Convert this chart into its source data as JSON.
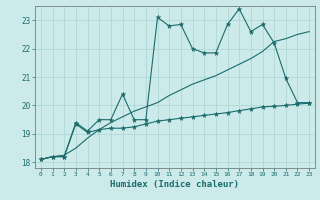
{
  "xlabel": "Humidex (Indice chaleur)",
  "bg_color": "#cceaea",
  "grid_color": "#aad4d4",
  "line_color": "#1a6b6b",
  "xlim": [
    -0.5,
    23.5
  ],
  "ylim": [
    17.8,
    23.5
  ],
  "yticks": [
    18,
    19,
    20,
    21,
    22,
    23
  ],
  "xticks": [
    0,
    1,
    2,
    3,
    4,
    5,
    6,
    7,
    8,
    9,
    10,
    11,
    12,
    13,
    14,
    15,
    16,
    17,
    18,
    19,
    20,
    21,
    22,
    23
  ],
  "line1_x": [
    0,
    1,
    2,
    3,
    4,
    5,
    6,
    7,
    8,
    9,
    10,
    11,
    12,
    13,
    14,
    15,
    16,
    17,
    18,
    19,
    20,
    21,
    22,
    23
  ],
  "line1_y": [
    18.1,
    18.2,
    18.2,
    19.4,
    19.1,
    19.5,
    19.5,
    20.4,
    19.5,
    19.5,
    23.1,
    22.8,
    22.85,
    22.0,
    21.85,
    21.85,
    22.85,
    23.4,
    22.6,
    22.85,
    22.2,
    20.95,
    20.1,
    20.1
  ],
  "line2_x": [
    0,
    1,
    2,
    3,
    4,
    5,
    6,
    7,
    8,
    9,
    10,
    11,
    12,
    13,
    14,
    15,
    16,
    17,
    18,
    19,
    20,
    21,
    22,
    23
  ],
  "line2_y": [
    18.1,
    18.2,
    18.2,
    19.35,
    19.05,
    19.15,
    19.2,
    19.2,
    19.25,
    19.35,
    19.45,
    19.5,
    19.55,
    19.6,
    19.65,
    19.7,
    19.75,
    19.82,
    19.88,
    19.95,
    19.97,
    20.0,
    20.05,
    20.08
  ],
  "line3_x": [
    0,
    1,
    2,
    3,
    4,
    5,
    6,
    7,
    8,
    9,
    10,
    11,
    12,
    13,
    14,
    15,
    16,
    17,
    18,
    19,
    20,
    21,
    22,
    23
  ],
  "line3_y": [
    18.1,
    18.2,
    18.25,
    18.5,
    18.85,
    19.15,
    19.4,
    19.6,
    19.8,
    19.95,
    20.1,
    20.35,
    20.55,
    20.75,
    20.9,
    21.05,
    21.25,
    21.45,
    21.65,
    21.9,
    22.25,
    22.35,
    22.5,
    22.6
  ]
}
